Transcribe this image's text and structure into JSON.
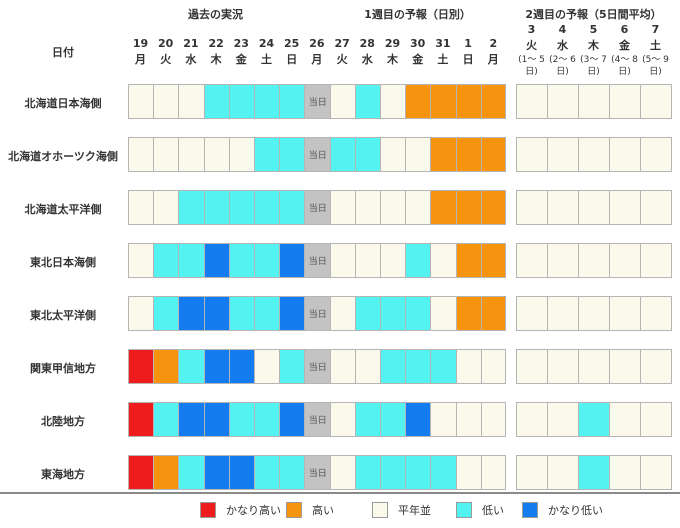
{
  "headers": {
    "past": "過去の実況",
    "week1": "1週目の予報（日別）",
    "week2": "2週目の予報（5日間平均）",
    "date_label": "日付"
  },
  "days": [
    {
      "d": "19",
      "w": "月"
    },
    {
      "d": "20",
      "w": "火"
    },
    {
      "d": "21",
      "w": "水"
    },
    {
      "d": "22",
      "w": "木"
    },
    {
      "d": "23",
      "w": "金"
    },
    {
      "d": "24",
      "w": "土"
    },
    {
      "d": "25",
      "w": "日"
    },
    {
      "d": "26",
      "w": "月"
    },
    {
      "d": "27",
      "w": "火"
    },
    {
      "d": "28",
      "w": "水"
    },
    {
      "d": "29",
      "w": "木"
    },
    {
      "d": "30",
      "w": "金"
    },
    {
      "d": "31",
      "w": "土"
    },
    {
      "d": "1",
      "w": "日"
    },
    {
      "d": "2",
      "w": "月"
    }
  ],
  "week2_days": [
    {
      "d": "3",
      "w": "火",
      "note": "(1〜 5日)"
    },
    {
      "d": "4",
      "w": "水",
      "note": "(2〜 6日)"
    },
    {
      "d": "5",
      "w": "木",
      "note": "(3〜 7日)"
    },
    {
      "d": "6",
      "w": "金",
      "note": "(4〜 8日)"
    },
    {
      "d": "7",
      "w": "土",
      "note": "(5〜 9日)"
    }
  ],
  "today_label": "当日",
  "colors": {
    "very_high": "#ee1c1c",
    "high": "#f7940f",
    "normal": "#fbf9ec",
    "low": "#55f2f2",
    "very_low": "#137df0",
    "today": "#c3c3c3"
  },
  "legend": [
    {
      "key": "very_high",
      "label": "かなり高い"
    },
    {
      "key": "high",
      "label": "高い"
    },
    {
      "key": "normal",
      "label": "平年並"
    },
    {
      "key": "low",
      "label": "低い"
    },
    {
      "key": "very_low",
      "label": "かなり低い"
    }
  ],
  "regions": [
    {
      "name": "北海道日本海側",
      "days": [
        "normal",
        "normal",
        "normal",
        "low",
        "low",
        "low",
        "low",
        "today",
        "normal",
        "low",
        "normal",
        "high",
        "high",
        "high",
        "high"
      ],
      "week2": [
        "normal",
        "normal",
        "normal",
        "normal",
        "normal"
      ]
    },
    {
      "name": "北海道オホーツク海側",
      "days": [
        "normal",
        "normal",
        "normal",
        "normal",
        "normal",
        "low",
        "low",
        "today",
        "low",
        "low",
        "normal",
        "normal",
        "high",
        "high",
        "high"
      ],
      "week2": [
        "normal",
        "normal",
        "normal",
        "normal",
        "normal"
      ]
    },
    {
      "name": "北海道太平洋側",
      "days": [
        "normal",
        "normal",
        "low",
        "low",
        "low",
        "low",
        "low",
        "today",
        "normal",
        "normal",
        "normal",
        "normal",
        "high",
        "high",
        "high"
      ],
      "week2": [
        "normal",
        "normal",
        "normal",
        "normal",
        "normal"
      ]
    },
    {
      "name": "東北日本海側",
      "days": [
        "normal",
        "low",
        "low",
        "very_low",
        "low",
        "low",
        "very_low",
        "today",
        "normal",
        "normal",
        "normal",
        "low",
        "normal",
        "high",
        "high"
      ],
      "week2": [
        "normal",
        "normal",
        "normal",
        "normal",
        "normal"
      ]
    },
    {
      "name": "東北太平洋側",
      "days": [
        "normal",
        "low",
        "very_low",
        "very_low",
        "low",
        "low",
        "very_low",
        "today",
        "normal",
        "low",
        "low",
        "low",
        "normal",
        "high",
        "high"
      ],
      "week2": [
        "normal",
        "normal",
        "normal",
        "normal",
        "normal"
      ]
    },
    {
      "name": "関東甲信地方",
      "days": [
        "very_high",
        "high",
        "low",
        "very_low",
        "very_low",
        "normal",
        "low",
        "today",
        "normal",
        "normal",
        "low",
        "low",
        "low",
        "normal",
        "normal"
      ],
      "week2": [
        "normal",
        "normal",
        "normal",
        "normal",
        "normal"
      ]
    },
    {
      "name": "北陸地方",
      "days": [
        "very_high",
        "low",
        "very_low",
        "very_low",
        "low",
        "low",
        "very_low",
        "today",
        "normal",
        "low",
        "low",
        "very_low",
        "normal",
        "normal",
        "normal"
      ],
      "week2": [
        "normal",
        "normal",
        "low",
        "normal",
        "normal"
      ]
    },
    {
      "name": "東海地方",
      "days": [
        "very_high",
        "high",
        "low",
        "very_low",
        "very_low",
        "low",
        "low",
        "today",
        "normal",
        "low",
        "low",
        "low",
        "low",
        "normal",
        "normal"
      ],
      "week2": [
        "normal",
        "normal",
        "low",
        "normal",
        "normal"
      ]
    }
  ]
}
